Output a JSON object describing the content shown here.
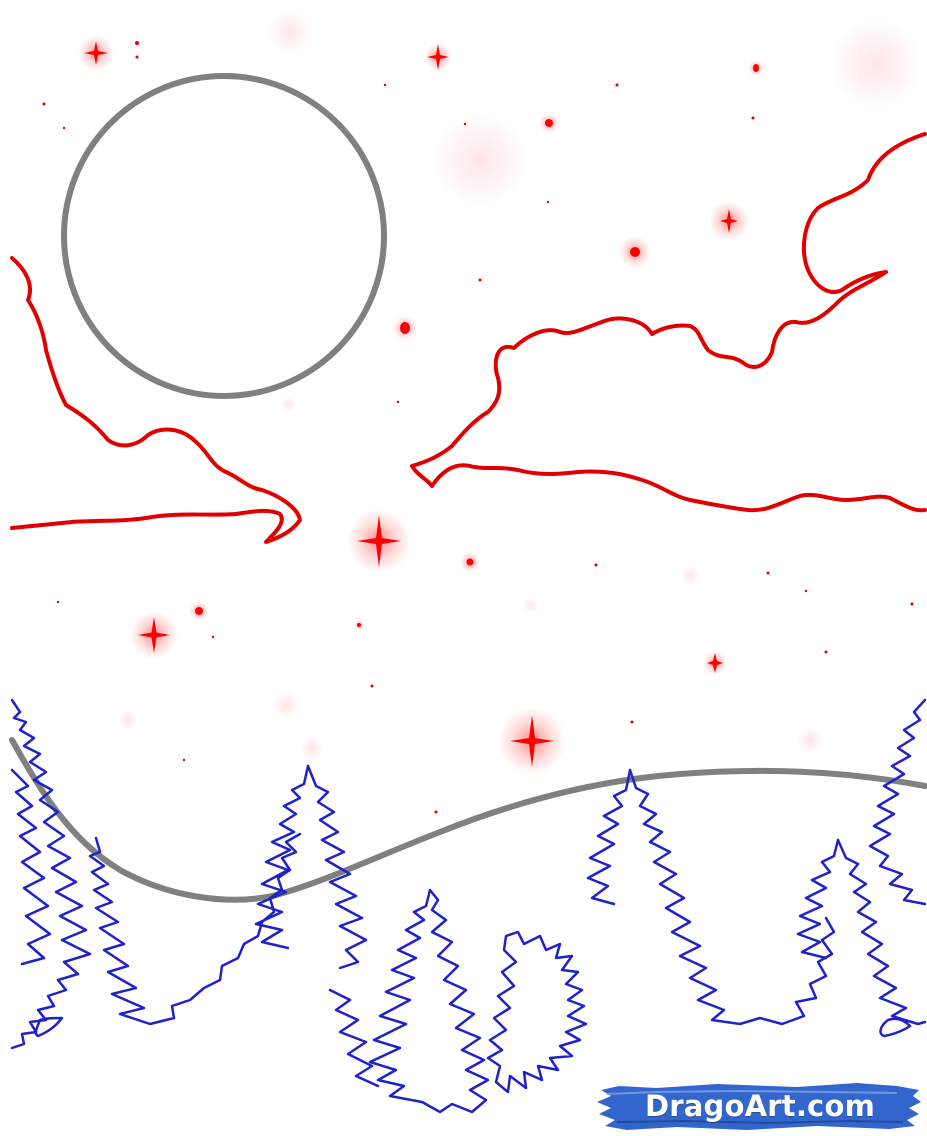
{
  "watermark": {
    "text": "DragoArt.com"
  },
  "colors": {
    "moon_outline": "#808080",
    "hill_line": "#808080",
    "cloud_outline": "#e00000",
    "star": "#ff0000",
    "star_glow": "#ff0000",
    "tree_outline": "#1f22c8",
    "watermark_bg": "#3366cc",
    "watermark_text": "#ffffff",
    "background": "#ffffff"
  },
  "icons": {
    "sparkle_star": "sparkle-star-icon",
    "dot_star": "dot-star-icon"
  }
}
